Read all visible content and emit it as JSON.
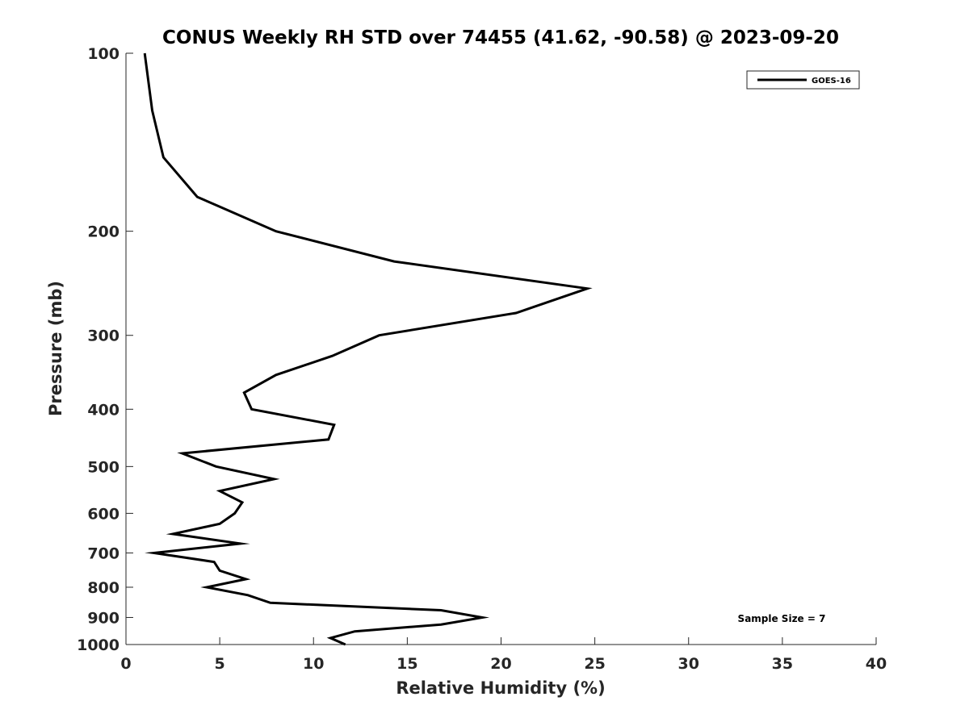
{
  "chart_data": {
    "type": "line",
    "title": "CONUS Weekly RH STD over 74455 (41.62, -90.58) @ 2023-09-20",
    "xlabel": "Relative Humidity (%)",
    "ylabel": "Pressure (mb)",
    "xlim": [
      0,
      40
    ],
    "ylim": [
      100,
      1000
    ],
    "y_scale": "log",
    "y_inverted": true,
    "x_ticks": [
      0,
      5,
      10,
      15,
      20,
      25,
      30,
      35,
      40
    ],
    "y_ticks": [
      100,
      200,
      300,
      400,
      500,
      600,
      700,
      800,
      900,
      1000
    ],
    "grid": false,
    "legend_position": "top-right",
    "series": [
      {
        "name": "GOES-16",
        "color": "#000000",
        "points": [
          {
            "x": 1.0,
            "y": 100
          },
          {
            "x": 1.4,
            "y": 125
          },
          {
            "x": 2.0,
            "y": 150
          },
          {
            "x": 3.8,
            "y": 175
          },
          {
            "x": 8.0,
            "y": 200
          },
          {
            "x": 14.3,
            "y": 225
          },
          {
            "x": 24.6,
            "y": 250
          },
          {
            "x": 20.8,
            "y": 275
          },
          {
            "x": 13.5,
            "y": 300
          },
          {
            "x": 11.0,
            "y": 325
          },
          {
            "x": 8.0,
            "y": 350
          },
          {
            "x": 6.3,
            "y": 375
          },
          {
            "x": 6.7,
            "y": 400
          },
          {
            "x": 11.1,
            "y": 425
          },
          {
            "x": 10.8,
            "y": 450
          },
          {
            "x": 3.0,
            "y": 475
          },
          {
            "x": 4.8,
            "y": 500
          },
          {
            "x": 7.9,
            "y": 525
          },
          {
            "x": 5.0,
            "y": 550
          },
          {
            "x": 6.2,
            "y": 575
          },
          {
            "x": 5.8,
            "y": 600
          },
          {
            "x": 5.0,
            "y": 625
          },
          {
            "x": 2.5,
            "y": 650
          },
          {
            "x": 6.1,
            "y": 675
          },
          {
            "x": 1.5,
            "y": 700
          },
          {
            "x": 4.7,
            "y": 725
          },
          {
            "x": 5.0,
            "y": 750
          },
          {
            "x": 6.4,
            "y": 775
          },
          {
            "x": 4.3,
            "y": 800
          },
          {
            "x": 6.5,
            "y": 825
          },
          {
            "x": 7.7,
            "y": 850
          },
          {
            "x": 16.8,
            "y": 875
          },
          {
            "x": 19.0,
            "y": 900
          },
          {
            "x": 16.8,
            "y": 925
          },
          {
            "x": 12.2,
            "y": 950
          },
          {
            "x": 10.9,
            "y": 975
          },
          {
            "x": 11.7,
            "y": 1000
          }
        ]
      }
    ],
    "annotations": [
      "Sample Size = 7"
    ]
  }
}
